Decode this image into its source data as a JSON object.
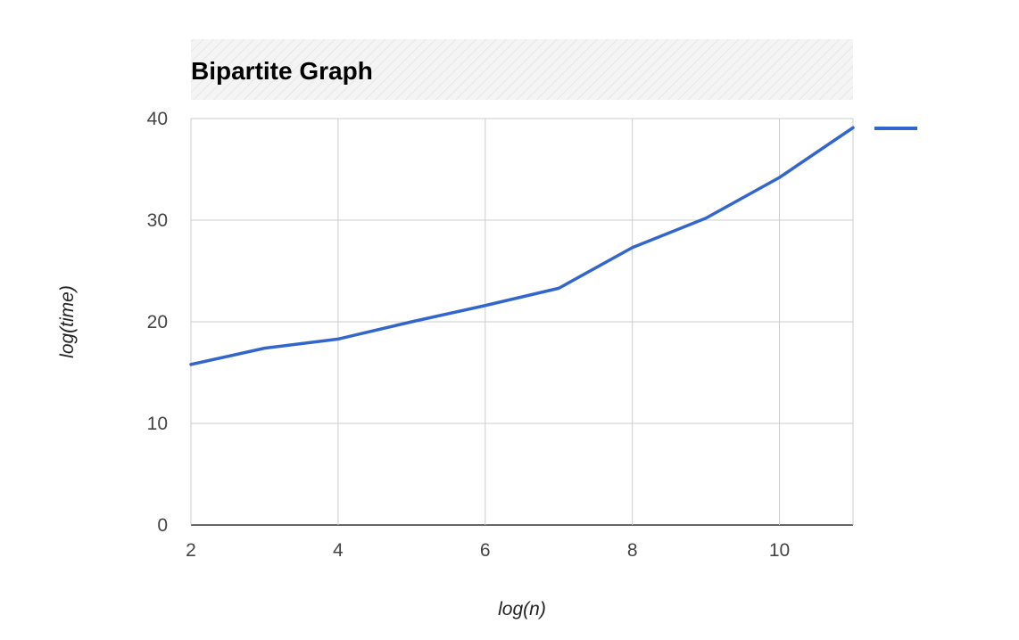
{
  "chart_data": {
    "type": "line",
    "title": "Bipartite Graph",
    "xlabel": "log(n)",
    "ylabel": "log(time)",
    "xlim": [
      2,
      11
    ],
    "ylim": [
      0,
      40
    ],
    "xticks": [
      2,
      4,
      6,
      8,
      10
    ],
    "yticks": [
      0,
      10,
      20,
      30,
      40
    ],
    "grid": true,
    "legend_position": "right",
    "series": [
      {
        "color": "#3366cc",
        "x": [
          2,
          3,
          4,
          5,
          6,
          7,
          8,
          9,
          10,
          11
        ],
        "y": [
          15.8,
          17.4,
          18.3,
          20.0,
          21.6,
          23.3,
          27.3,
          30.2,
          34.2,
          39.1
        ]
      }
    ]
  }
}
